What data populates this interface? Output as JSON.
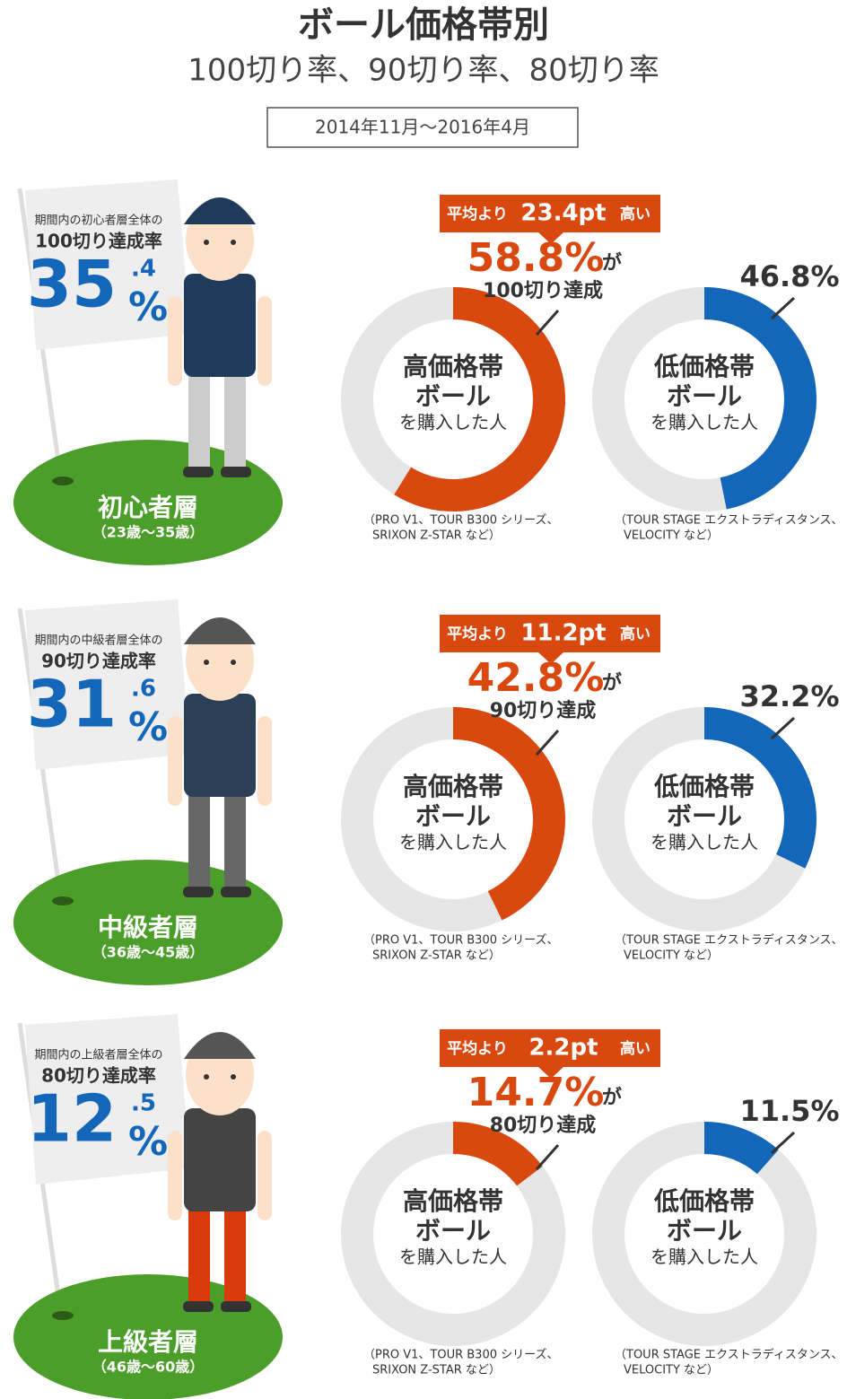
{
  "title": "ボール価格帯別",
  "subtitle": "100切り率、90切り率、80切り率",
  "period": "2014年11月～2016年4月",
  "sections": [
    {
      "flag_caption": "期間内の初心者層全体の",
      "flag_goal": "100切り達成率",
      "overall_whole": "35",
      "overall_decimal": ".4",
      "overall_unit": "%",
      "level": "初心者層",
      "ages": "（23歳～35歳）",
      "banner_prefix": "平均より",
      "banner_value": "23.4pt",
      "banner_suffix": "高い",
      "high": {
        "value": 58.8,
        "value_label": "58.8%",
        "particle": "が",
        "achievement": "100切り達成",
        "title_lines": [
          "高価格帯",
          "ボール"
        ],
        "caption": "を購入した人",
        "note_lines": [
          "（PRO V1、TOUR B300 シリーズ、",
          "SRIXON Z-STAR など）"
        ]
      },
      "low": {
        "value": 46.8,
        "value_label": "46.8%",
        "title_lines": [
          "低価格帯",
          "ボール"
        ],
        "caption": "を購入した人",
        "note_lines": [
          "（TOUR STAGE エクストラディスタンス、",
          "VELOCITY など）"
        ]
      }
    },
    {
      "flag_caption": "期間内の中級者層全体の",
      "flag_goal": "90切り達成率",
      "overall_whole": "31",
      "overall_decimal": ".6",
      "overall_unit": "%",
      "level": "中級者層",
      "ages": "（36歳～45歳）",
      "banner_prefix": "平均より",
      "banner_value": "11.2pt",
      "banner_suffix": "高い",
      "high": {
        "value": 42.8,
        "value_label": "42.8%",
        "particle": "が",
        "achievement": "90切り達成",
        "title_lines": [
          "高価格帯",
          "ボール"
        ],
        "caption": "を購入した人",
        "note_lines": [
          "（PRO V1、TOUR B300 シリーズ、",
          "SRIXON Z-STAR など）"
        ]
      },
      "low": {
        "value": 32.2,
        "value_label": "32.2%",
        "title_lines": [
          "低価格帯",
          "ボール"
        ],
        "caption": "を購入した人",
        "note_lines": [
          "（TOUR STAGE エクストラディスタンス、",
          "VELOCITY など）"
        ]
      }
    },
    {
      "flag_caption": "期間内の上級者層全体の",
      "flag_goal": "80切り達成率",
      "overall_whole": "12",
      "overall_decimal": ".5",
      "overall_unit": "%",
      "level": "上級者層",
      "ages": "（46歳～60歳）",
      "banner_prefix": "平均より",
      "banner_value": "2.2pt",
      "banner_suffix": "高い",
      "high": {
        "value": 14.7,
        "value_label": "14.7%",
        "particle": "が",
        "achievement": "80切り達成",
        "title_lines": [
          "高価格帯",
          "ボール"
        ],
        "caption": "を購入した人",
        "note_lines": [
          "（PRO V1、TOUR B300 シリーズ、",
          "SRIXON Z-STAR など）"
        ]
      },
      "low": {
        "value": 11.5,
        "value_label": "11.5%",
        "title_lines": [
          "低価格帯",
          "ボール"
        ],
        "caption": "を購入した人",
        "note_lines": [
          "（TOUR STAGE エクストラディスタンス、",
          "VELOCITY など）"
        ]
      }
    }
  ]
}
